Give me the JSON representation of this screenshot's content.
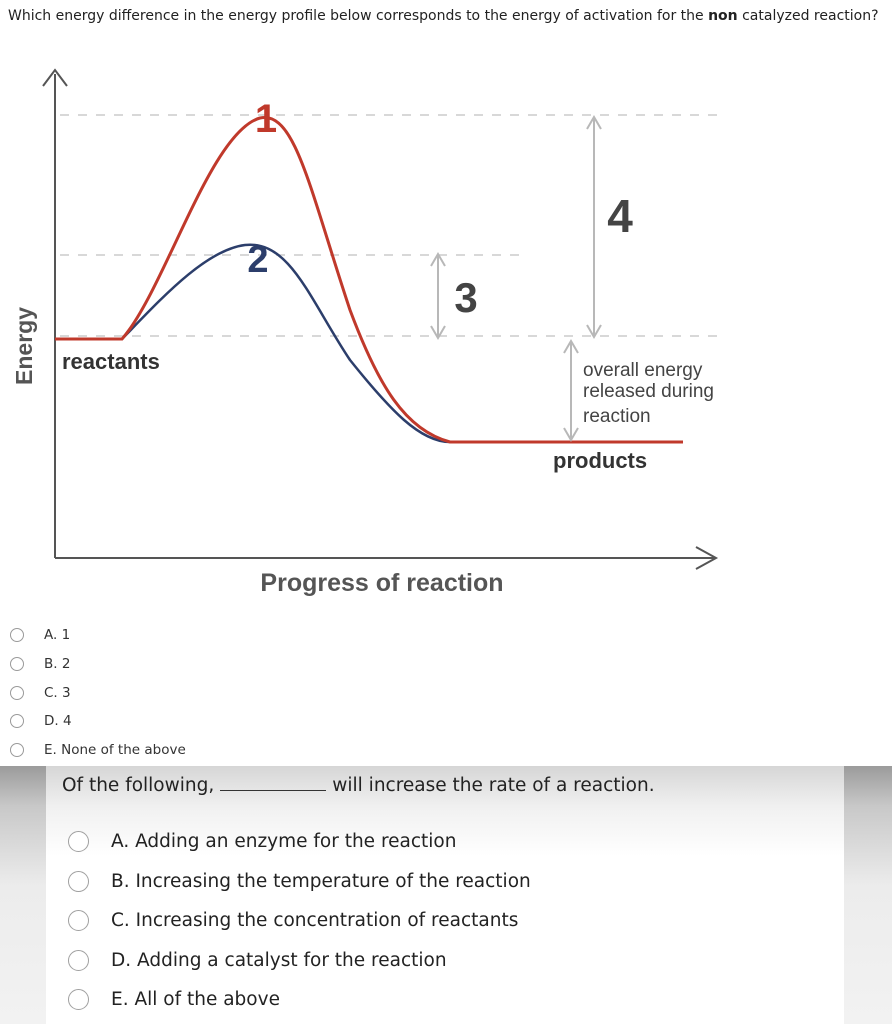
{
  "question1": {
    "text_before": "Which energy difference in the energy profile below corresponds to the energy of activation for the ",
    "text_bold": "non",
    "text_after": " catalyzed reaction?",
    "diagram": {
      "y_axis_label": "Energy",
      "x_axis_label": "Progress of reaction",
      "reactants_label": "reactants",
      "products_label": "products",
      "overall_label_line1": "overall energy",
      "overall_label_line2": "released during",
      "overall_label_line3": "reaction",
      "marker_1": "1",
      "marker_2": "2",
      "marker_3": "3",
      "marker_4": "4",
      "colors": {
        "uncatalyzed_curve": "#c0392b",
        "catalyzed_curve": "#2c3e6b",
        "arrows": "#b8b8b8"
      }
    },
    "options": [
      {
        "label": "A.  1"
      },
      {
        "label": "B.  2"
      },
      {
        "label": "C.  3"
      },
      {
        "label": "D.  4"
      },
      {
        "label": "E.  None of the above"
      }
    ]
  },
  "question2": {
    "text_before": "Of the following,",
    "text_after": "will increase the rate of a reaction.",
    "options": [
      {
        "label": "A.  Adding an enzyme for the reaction"
      },
      {
        "label": "B.  Increasing the temperature of the reaction"
      },
      {
        "label": "C.  Increasing the concentration of reactants"
      },
      {
        "label": "D.  Adding a catalyst for the reaction"
      },
      {
        "label": "E.  All of the above"
      }
    ]
  }
}
